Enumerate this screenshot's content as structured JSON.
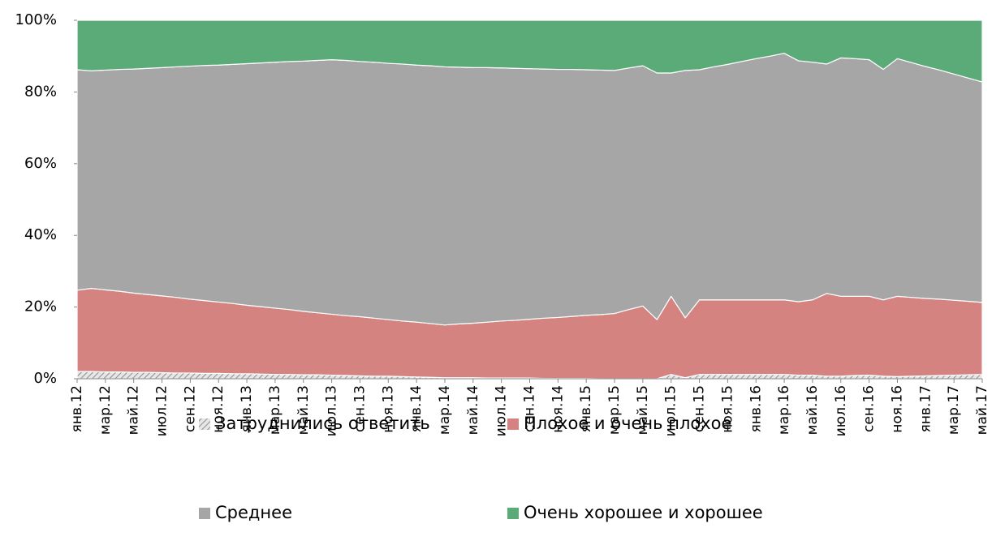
{
  "chart_data": {
    "type": "stacked_area_percent",
    "categories": [
      "янв.12",
      null,
      "мар.12",
      null,
      "май.12",
      null,
      "июл.12",
      null,
      "сен.12",
      null,
      "ноя.12",
      null,
      "янв.13",
      null,
      "мар.13",
      null,
      "май.13",
      null,
      "июл.13",
      null,
      "сен.13",
      null,
      "ноя.13",
      null,
      "янв.14",
      null,
      "мар.14",
      null,
      "май.14",
      null,
      "июл.14",
      null,
      "сен.14",
      null,
      "ноя.14",
      null,
      "янв.15",
      null,
      "мар.15",
      null,
      "май.15",
      null,
      "июл.15",
      null,
      "сен.15",
      null,
      "ноя.15",
      null,
      "янв.16",
      null,
      "мар.16",
      null,
      "май.16",
      null,
      "июл.16",
      null,
      "сен.16",
      null,
      "ноя.16",
      null,
      "янв.17",
      null,
      "мар.17",
      null,
      "май.17"
    ],
    "series": [
      {
        "name": "Затруднились ответить",
        "color": "#a6a6a6",
        "pattern": "hatch",
        "values": [
          2.0,
          2.0,
          1.9,
          1.9,
          1.8,
          1.8,
          1.7,
          1.6,
          1.6,
          1.5,
          1.5,
          1.4,
          1.4,
          1.3,
          1.2,
          1.2,
          1.1,
          1.1,
          1.0,
          0.9,
          0.8,
          0.7,
          0.7,
          0.6,
          0.5,
          0.4,
          0.3,
          0.3,
          0.3,
          0.2,
          0.2,
          0.2,
          0.2,
          0.1,
          0.1,
          0.1,
          0.1,
          0.0,
          0.0,
          0.0,
          0.0,
          0.0,
          1.2,
          0.3,
          1.2,
          1.2,
          1.2,
          1.2,
          1.2,
          1.2,
          1.2,
          1.0,
          1.0,
          0.7,
          0.7,
          0.9,
          1.0,
          0.7,
          0.6,
          0.7,
          0.8,
          0.9,
          1.0,
          1.1,
          1.2
        ]
      },
      {
        "name": "Плохое и очень плохое",
        "color": "#d48381",
        "values": [
          22.7,
          23.2,
          22.9,
          22.5,
          22.1,
          21.7,
          21.4,
          21.1,
          20.6,
          20.3,
          19.9,
          19.6,
          19.1,
          18.8,
          18.5,
          18.1,
          17.7,
          17.3,
          17.0,
          16.7,
          16.5,
          16.2,
          15.8,
          15.5,
          15.3,
          15.0,
          14.7,
          15.0,
          15.2,
          15.6,
          15.9,
          16.1,
          16.4,
          16.8,
          17.0,
          17.3,
          17.6,
          17.9,
          18.2,
          19.3,
          20.3,
          16.5,
          21.8,
          16.7,
          20.8,
          20.8,
          20.8,
          20.8,
          20.8,
          20.8,
          20.8,
          20.5,
          21.0,
          23.1,
          22.3,
          22.1,
          22.0,
          21.3,
          22.4,
          22.0,
          21.6,
          21.3,
          20.9,
          20.5,
          20.1
        ]
      },
      {
        "name": "Среднее",
        "color": "#a6a6a6",
        "values": [
          61.5,
          60.7,
          61.3,
          61.9,
          62.5,
          63.1,
          63.7,
          64.3,
          65.0,
          65.6,
          66.1,
          66.7,
          67.4,
          68.0,
          68.6,
          69.2,
          69.8,
          70.4,
          71.0,
          71.2,
          71.2,
          71.4,
          71.5,
          71.7,
          71.7,
          71.9,
          72.0,
          71.6,
          71.3,
          71.0,
          70.6,
          70.3,
          69.9,
          69.5,
          69.2,
          68.9,
          68.5,
          68.2,
          67.8,
          67.4,
          67.0,
          68.8,
          62.3,
          69.0,
          64.2,
          65.0,
          65.7,
          66.5,
          67.3,
          68.0,
          68.8,
          67.2,
          66.3,
          64.0,
          66.5,
          66.3,
          66.0,
          64.3,
          66.3,
          65.5,
          64.7,
          63.9,
          63.1,
          62.3,
          61.5
        ]
      },
      {
        "name": "Очень хорошее и хорошее",
        "color": "#5aab78",
        "values": [
          13.8,
          14.1,
          13.9,
          13.7,
          13.6,
          13.4,
          13.2,
          13.0,
          12.8,
          12.6,
          12.5,
          12.3,
          12.1,
          11.9,
          11.7,
          11.5,
          11.4,
          11.2,
          11.0,
          11.2,
          11.5,
          11.7,
          12.0,
          12.2,
          12.5,
          12.7,
          13.0,
          13.1,
          13.2,
          13.2,
          13.3,
          13.4,
          13.5,
          13.6,
          13.7,
          13.7,
          13.8,
          13.9,
          14.0,
          13.3,
          12.7,
          14.7,
          14.7,
          14.0,
          13.8,
          13.0,
          12.3,
          11.5,
          10.7,
          10.0,
          9.2,
          11.3,
          11.7,
          12.2,
          10.5,
          10.7,
          11.0,
          13.7,
          10.7,
          11.8,
          12.9,
          13.9,
          15.0,
          16.1,
          17.2
        ]
      }
    ],
    "ylim": [
      0,
      100
    ],
    "yticks": [
      {
        "value": 0,
        "label": "0%"
      },
      {
        "value": 20,
        "label": "20%"
      },
      {
        "value": 40,
        "label": "40%"
      },
      {
        "value": 60,
        "label": "60%"
      },
      {
        "value": 80,
        "label": "80%"
      },
      {
        "value": 100,
        "label": "100%"
      }
    ],
    "grid": false,
    "legend": "bottom"
  }
}
